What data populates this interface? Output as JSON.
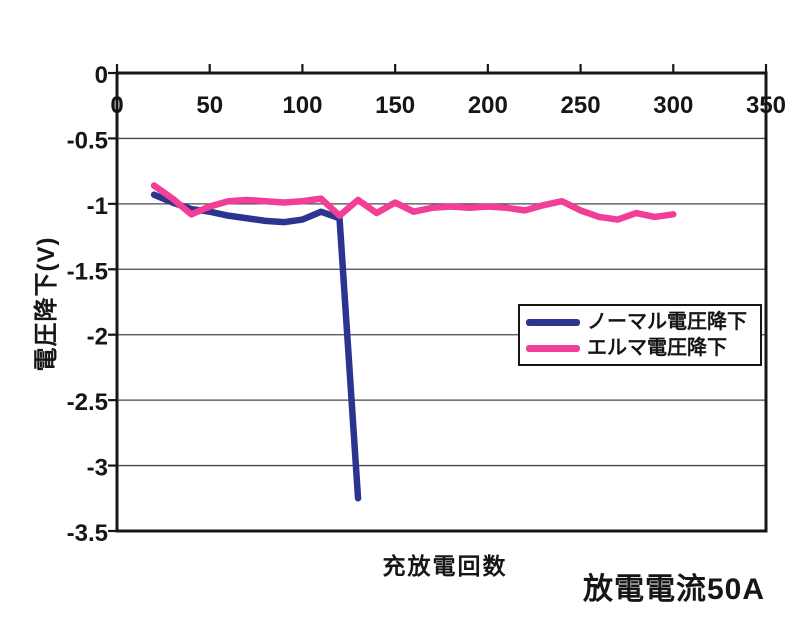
{
  "page": {
    "background": "#ffffff",
    "text_color": "#161616"
  },
  "chart_data": {
    "type": "line",
    "title": "",
    "xlabel": "充放電回数",
    "ylabel": "電圧降下(V)",
    "annotation": "放電電流50A",
    "xlim": [
      0,
      350
    ],
    "ylim": [
      -3.5,
      0
    ],
    "x_ticks": [
      0,
      50,
      100,
      150,
      200,
      250,
      300,
      350
    ],
    "y_ticks": [
      0,
      -0.5,
      -1,
      -1.5,
      -2,
      -2.5,
      -3,
      -3.5
    ],
    "grid": "horizontal-only",
    "legend_position": "boxed-center-right",
    "axis_color": "#161616",
    "gridline_color": "#4a4a4a",
    "series": [
      {
        "name": "ノーマル電圧降下",
        "color": "#2b3590",
        "x": [
          20,
          30,
          40,
          50,
          60,
          70,
          80,
          90,
          100,
          110,
          120,
          130
        ],
        "values": [
          -0.93,
          -0.99,
          -1.04,
          -1.06,
          -1.09,
          -1.11,
          -1.13,
          -1.14,
          -1.12,
          -1.06,
          -1.11,
          -3.25
        ]
      },
      {
        "name": "エルマ電圧降下",
        "color": "#f23e96",
        "x": [
          20,
          30,
          40,
          50,
          60,
          70,
          80,
          90,
          100,
          110,
          120,
          130,
          140,
          150,
          160,
          170,
          180,
          190,
          200,
          210,
          220,
          230,
          240,
          250,
          260,
          270,
          280,
          290,
          300
        ],
        "values": [
          -0.86,
          -0.96,
          -1.08,
          -1.02,
          -0.98,
          -0.97,
          -0.98,
          -0.99,
          -0.98,
          -0.96,
          -1.09,
          -0.97,
          -1.07,
          -0.99,
          -1.06,
          -1.03,
          -1.02,
          -1.03,
          -1.02,
          -1.03,
          -1.05,
          -1.01,
          -0.98,
          -1.05,
          -1.1,
          -1.12,
          -1.07,
          -1.1,
          -1.08
        ]
      }
    ]
  }
}
